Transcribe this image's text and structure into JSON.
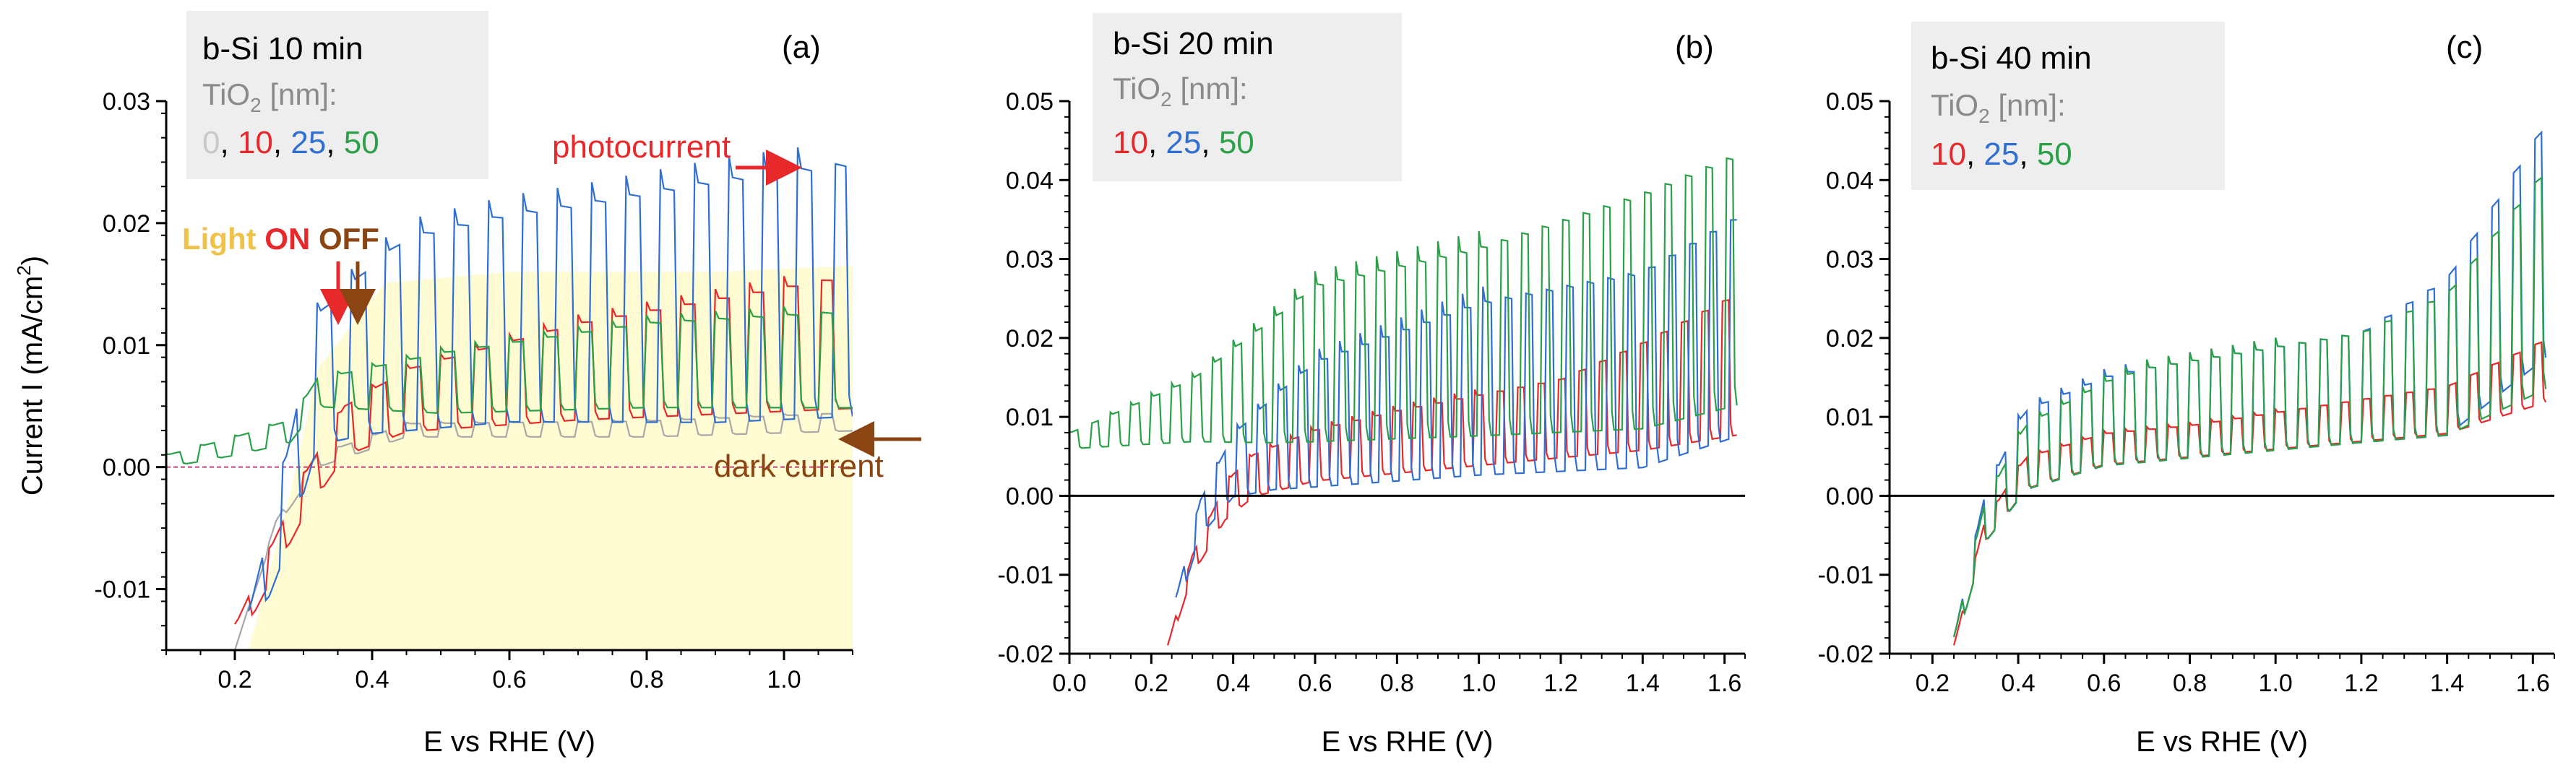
{
  "figure": {
    "ylabel_text": "Current I (mA/cm",
    "ylabel_sup": "2",
    "ylabel_close": ")"
  },
  "colors": {
    "c0": "#a8a8a8",
    "c10": "#e8292b",
    "c25": "#2f6fd2",
    "c50": "#2aa148",
    "axis": "#000000",
    "legendGray": "#8a8a8a",
    "legendBox": "#eeeeee",
    "shade": "#fffbd2",
    "arrowRed": "#e8292b",
    "arrowBrown": "#8b4513",
    "lightYellow": "#f0c24a"
  },
  "annotations": {
    "light": "Light",
    "on": "ON",
    "off": "OFF",
    "photocurrent": "photocurrent",
    "dark_current": "dark current"
  },
  "chart_data": [
    {
      "type": "line",
      "panel_label": "(a)",
      "xlabel": "E vs RHE (V)",
      "xlim": [
        0.1,
        1.1
      ],
      "ylim": [
        -0.015,
        0.03
      ],
      "xticks": [
        0.2,
        0.4,
        0.6,
        0.8,
        1.0
      ],
      "xtick_labels": [
        "0.2",
        "0.4",
        "0.6",
        "0.8",
        "1.0"
      ],
      "yticks": [
        -0.01,
        0.0,
        0.01,
        0.02,
        0.03
      ],
      "ytick_labels": [
        "-0.01",
        "0.00",
        "0.01",
        "0.02",
        "0.03"
      ],
      "legend": {
        "title": "b-Si 10 min",
        "subtitle": "TiO",
        "subtitle_sub": "2",
        "subtitle_tail": " [nm]:",
        "entries": [
          "0",
          "10",
          "25",
          "50"
        ]
      },
      "series": [
        {
          "name": "0",
          "color": "#a8a8a8",
          "onset": 0.22,
          "gen": {
            "x0": 0.2,
            "x1": 1.1,
            "period": 0.05,
            "pts": [
              [
                0.2,
                -0.015
              ],
              [
                0.26,
                -0.005
              ],
              [
                0.32,
                0.0
              ],
              [
                0.45,
                0.0025
              ],
              [
                0.8,
                0.0025
              ],
              [
                1.1,
                0.003
              ]
            ],
            "amp": [
              [
                0.2,
                0.0
              ],
              [
                0.3,
                0.001
              ],
              [
                1.1,
                0.0015
              ]
            ]
          }
        },
        {
          "name": "10",
          "color": "#e8292b",
          "onset": 0.22,
          "gen": {
            "x0": 0.2,
            "x1": 1.1,
            "period": 0.05,
            "pts": [
              [
                0.2,
                -0.015
              ],
              [
                0.3,
                -0.004
              ],
              [
                0.36,
                0.001
              ],
              [
                0.45,
                0.003
              ],
              [
                0.7,
                0.004
              ],
              [
                0.9,
                0.0045
              ],
              [
                1.1,
                0.005
              ]
            ],
            "amp": [
              [
                0.2,
                0.002
              ],
              [
                0.35,
                0.004
              ],
              [
                0.7,
                0.008
              ],
              [
                1.1,
                0.011
              ]
            ]
          }
        },
        {
          "name": "25",
          "color": "#2f6fd2",
          "onset": 0.22,
          "gen": {
            "x0": 0.22,
            "x1": 1.1,
            "period": 0.05,
            "pts": [
              [
                0.22,
                -0.015
              ],
              [
                0.28,
                -0.006
              ],
              [
                0.32,
                0.002
              ],
              [
                0.4,
                0.003
              ],
              [
                0.6,
                0.004
              ],
              [
                0.9,
                0.004
              ],
              [
                1.1,
                0.0045
              ]
            ],
            "amp": [
              [
                0.22,
                0.003
              ],
              [
                0.3,
                0.01
              ],
              [
                0.45,
                0.016
              ],
              [
                0.7,
                0.018
              ],
              [
                0.9,
                0.02
              ],
              [
                1.1,
                0.021
              ]
            ]
          }
        },
        {
          "name": "50",
          "color": "#2aa148",
          "onset": 0.1,
          "gen": {
            "x0": 0.1,
            "x1": 1.1,
            "period": 0.05,
            "pts": [
              [
                0.1,
                0.0
              ],
              [
                0.2,
                0.001
              ],
              [
                0.28,
                0.002
              ],
              [
                0.32,
                0.005
              ],
              [
                0.5,
                0.0045
              ],
              [
                0.8,
                0.005
              ],
              [
                1.1,
                0.005
              ]
            ],
            "amp": [
              [
                0.1,
                0.001
              ],
              [
                0.3,
                0.002
              ],
              [
                0.5,
                0.005
              ],
              [
                0.8,
                0.007
              ],
              [
                1.1,
                0.008
              ]
            ]
          }
        }
      ]
    },
    {
      "type": "line",
      "panel_label": "(b)",
      "xlabel": "E vs RHE (V)",
      "xlim": [
        0.0,
        1.65
      ],
      "ylim": [
        -0.02,
        0.05
      ],
      "xticks": [
        0.0,
        0.2,
        0.4,
        0.6,
        0.8,
        1.0,
        1.2,
        1.4,
        1.6
      ],
      "xtick_labels": [
        "0.0",
        "0.2",
        "0.4",
        "0.6",
        "0.8",
        "1.0",
        "1.2",
        "1.4",
        "1.6"
      ],
      "yticks": [
        -0.02,
        -0.01,
        0.0,
        0.01,
        0.02,
        0.03,
        0.04,
        0.05
      ],
      "ytick_labels": [
        "-0.02",
        "-0.01",
        "0.00",
        "0.01",
        "0.02",
        "0.03",
        "0.04",
        "0.05"
      ],
      "legend": {
        "title": "b-Si 20 min",
        "subtitle": "TiO",
        "subtitle_sub": "2",
        "subtitle_tail": " [nm]:",
        "entries": [
          "10",
          "25",
          "50"
        ]
      },
      "series": [
        {
          "name": "10",
          "color": "#e8292b",
          "gen": {
            "x0": 0.24,
            "x1": 1.63,
            "period": 0.05,
            "pts": [
              [
                0.24,
                -0.02
              ],
              [
                0.3,
                -0.01
              ],
              [
                0.38,
                -0.003
              ],
              [
                0.45,
                0.0
              ],
              [
                0.6,
                0.002
              ],
              [
                1.0,
                0.004
              ],
              [
                1.4,
                0.006
              ],
              [
                1.63,
                0.008
              ]
            ],
            "amp": [
              [
                0.24,
                0.001
              ],
              [
                0.4,
                0.005
              ],
              [
                0.8,
                0.008
              ],
              [
                1.2,
                0.01
              ],
              [
                1.63,
                0.018
              ]
            ]
          }
        },
        {
          "name": "25",
          "color": "#2f6fd2",
          "gen": {
            "x0": 0.26,
            "x1": 1.63,
            "period": 0.05,
            "pts": [
              [
                0.26,
                -0.015
              ],
              [
                0.32,
                -0.005
              ],
              [
                0.4,
                0.0
              ],
              [
                0.5,
                0.001
              ],
              [
                1.0,
                0.003
              ],
              [
                1.4,
                0.004
              ],
              [
                1.63,
                0.008
              ]
            ],
            "amp": [
              [
                0.26,
                0.002
              ],
              [
                0.4,
                0.008
              ],
              [
                0.6,
                0.016
              ],
              [
                1.0,
                0.022
              ],
              [
                1.4,
                0.025
              ],
              [
                1.63,
                0.028
              ]
            ]
          }
        },
        {
          "name": "50",
          "color": "#2aa148",
          "gen": {
            "x0": 0.0,
            "x1": 1.63,
            "period": 0.05,
            "pts": [
              [
                0.0,
                0.006
              ],
              [
                0.3,
                0.007
              ],
              [
                0.5,
                0.007
              ],
              [
                1.0,
                0.008
              ],
              [
                1.4,
                0.009
              ],
              [
                1.63,
                0.012
              ]
            ],
            "amp": [
              [
                0.0,
                0.002
              ],
              [
                0.3,
                0.008
              ],
              [
                0.6,
                0.02
              ],
              [
                1.0,
                0.024
              ],
              [
                1.4,
                0.03
              ],
              [
                1.63,
                0.032
              ]
            ]
          }
        }
      ]
    },
    {
      "type": "line",
      "panel_label": "(c)",
      "xlabel": "E vs RHE (V)",
      "xlim": [
        0.1,
        1.65
      ],
      "ylim": [
        -0.02,
        0.05
      ],
      "xticks": [
        0.2,
        0.4,
        0.6,
        0.8,
        1.0,
        1.2,
        1.4,
        1.6
      ],
      "xtick_labels": [
        "0.2",
        "0.4",
        "0.6",
        "0.8",
        "1.0",
        "1.2",
        "1.4",
        "1.6"
      ],
      "yticks": [
        -0.02,
        -0.01,
        0.0,
        0.01,
        0.02,
        0.03,
        0.04,
        0.05
      ],
      "ytick_labels": [
        "-0.02",
        "-0.01",
        "0.00",
        "0.01",
        "0.02",
        "0.03",
        "0.04",
        "0.05"
      ],
      "legend": {
        "title": "b-Si 40 min",
        "subtitle": "TiO",
        "subtitle_sub": "2",
        "subtitle_tail": " [nm]:",
        "entries": [
          "10",
          "25",
          "50"
        ]
      },
      "series": [
        {
          "name": "10",
          "color": "#e8292b",
          "gen": {
            "x0": 0.25,
            "x1": 1.63,
            "period": 0.05,
            "pts": [
              [
                0.25,
                -0.02
              ],
              [
                0.32,
                -0.006
              ],
              [
                0.42,
                0.001
              ],
              [
                0.6,
                0.004
              ],
              [
                1.0,
                0.006
              ],
              [
                1.4,
                0.008
              ],
              [
                1.63,
                0.012
              ]
            ],
            "amp": [
              [
                0.25,
                0.001
              ],
              [
                0.4,
                0.004
              ],
              [
                0.8,
                0.004
              ],
              [
                1.4,
                0.006
              ],
              [
                1.63,
                0.008
              ]
            ]
          }
        },
        {
          "name": "25",
          "color": "#2f6fd2",
          "gen": {
            "x0": 0.25,
            "x1": 1.63,
            "period": 0.05,
            "pts": [
              [
                0.25,
                -0.02
              ],
              [
                0.32,
                -0.006
              ],
              [
                0.42,
                0.001
              ],
              [
                0.6,
                0.004
              ],
              [
                1.0,
                0.006
              ],
              [
                1.4,
                0.008
              ],
              [
                1.63,
                0.018
              ]
            ],
            "amp": [
              [
                0.25,
                0.002
              ],
              [
                0.4,
                0.01
              ],
              [
                0.7,
                0.012
              ],
              [
                1.2,
                0.014
              ],
              [
                1.4,
                0.02
              ],
              [
                1.63,
                0.03
              ]
            ]
          }
        },
        {
          "name": "50",
          "color": "#2aa148",
          "gen": {
            "x0": 0.25,
            "x1": 1.63,
            "period": 0.05,
            "pts": [
              [
                0.25,
                -0.02
              ],
              [
                0.32,
                -0.006
              ],
              [
                0.42,
                0.001
              ],
              [
                0.6,
                0.004
              ],
              [
                1.0,
                0.006
              ],
              [
                1.4,
                0.008
              ],
              [
                1.63,
                0.014
              ]
            ],
            "amp": [
              [
                0.25,
                0.002
              ],
              [
                0.4,
                0.008
              ],
              [
                0.7,
                0.012
              ],
              [
                1.2,
                0.014
              ],
              [
                1.4,
                0.018
              ],
              [
                1.63,
                0.028
              ]
            ]
          }
        }
      ]
    }
  ]
}
